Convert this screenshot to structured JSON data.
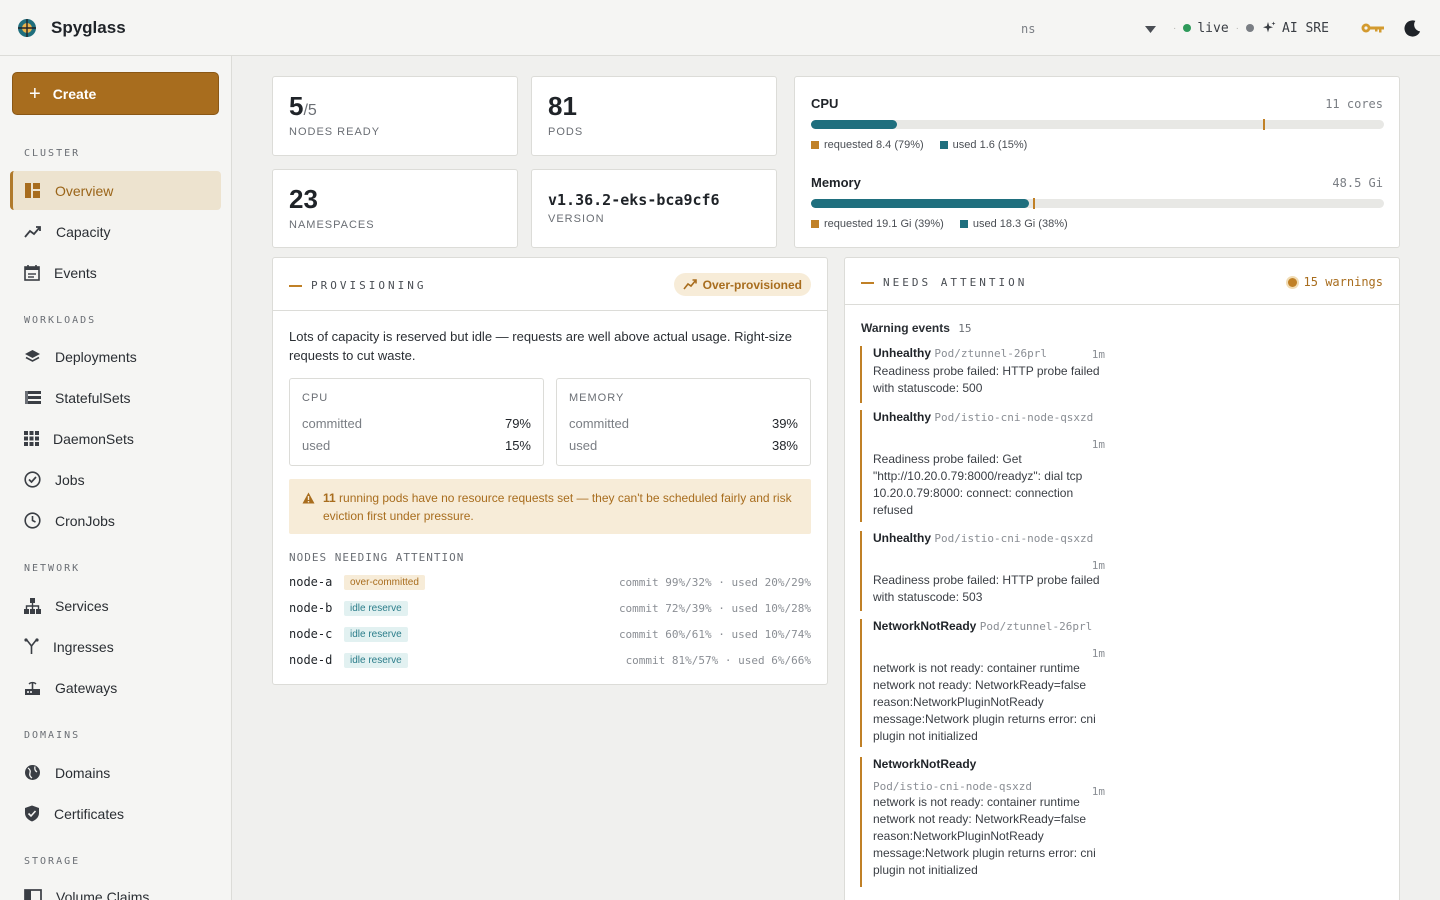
{
  "app": {
    "title": "Spyglass"
  },
  "topbar": {
    "ns_placeholder": "ns",
    "live_label": "live",
    "ai_label": "AI SRE"
  },
  "sidebar": {
    "create_label": "Create",
    "sections": {
      "cluster": "CLUSTER",
      "workloads": "WORKLOADS",
      "network": "NETWORK",
      "domains": "DOMAINS",
      "storage": "STORAGE"
    },
    "items": {
      "overview": "Overview",
      "capacity": "Capacity",
      "events": "Events",
      "deployments": "Deployments",
      "statefulsets": "StatefulSets",
      "daemonsets": "DaemonSets",
      "jobs": "Jobs",
      "cronjobs": "CronJobs",
      "services": "Services",
      "ingresses": "Ingresses",
      "gateways": "Gateways",
      "domains": "Domains",
      "certificates": "Certificates",
      "volumeclaims": "Volume Claims"
    }
  },
  "stats": {
    "nodes": {
      "value": "5",
      "total": "/5",
      "label": "NODES READY"
    },
    "pods": {
      "value": "81",
      "label": "PODS"
    },
    "namespaces": {
      "value": "23",
      "label": "NAMESPACES"
    },
    "version": {
      "value": "v1.36.2-eks-bca9cf6",
      "label": "VERSION"
    }
  },
  "resources": {
    "cpu": {
      "title": "CPU",
      "total": "11 cores",
      "used_fraction": 0.15,
      "requested_fraction": 0.79,
      "requested_label": "requested 8.4 (79%)",
      "used_label": "used 1.6 (15%)"
    },
    "memory": {
      "title": "Memory",
      "total": "48.5 Gi",
      "used_fraction": 0.38,
      "requested_fraction": 0.39,
      "requested_label": "requested 19.1 Gi (39%)",
      "used_label": "used 18.3 Gi (38%)"
    },
    "colors": {
      "used": "#1f6f7e",
      "requested": "#c08026"
    }
  },
  "provisioning": {
    "title": "PROVISIONING",
    "badge": "Over-provisioned",
    "description": "Lots of capacity is reserved but idle — requests are well above actual usage. Right-size requests to cut waste.",
    "cpu": {
      "title": "CPU",
      "committed_label": "committed",
      "committed": "79%",
      "used_label": "used",
      "used": "15%"
    },
    "memory": {
      "title": "MEMORY",
      "committed_label": "committed",
      "committed": "39%",
      "used_label": "used",
      "used": "38%"
    },
    "warning": {
      "count": "11",
      "text": " running pods have no resource requests set — they can't be scheduled fairly and risk eviction first under pressure."
    },
    "nodes_title": "NODES NEEDING ATTENTION",
    "nodes": [
      {
        "name": "node-a",
        "tag": "over-committed",
        "stats": "commit 99%/32% · used 20%/29%"
      },
      {
        "name": "node-b",
        "tag": "idle reserve",
        "stats": "commit 72%/39% · used 10%/28%"
      },
      {
        "name": "node-c",
        "tag": "idle reserve",
        "stats": "commit 60%/61% · used 10%/74%"
      },
      {
        "name": "node-d",
        "tag": "idle reserve",
        "stats": "commit 81%/57% · used 6%/66%"
      }
    ]
  },
  "attention": {
    "title": "NEEDS ATTENTION",
    "warnings_badge": "15 warnings",
    "events_label": "Warning events",
    "events_count": "15",
    "events": [
      {
        "reason": "Unhealthy",
        "object": "Pod/ztunnel-26prl",
        "age": "1m",
        "message": "Readiness probe failed: HTTP probe failed with statuscode: 500"
      },
      {
        "reason": "Unhealthy",
        "object": "Pod/istio-cni-node-qsxzd",
        "age": "1m",
        "message": "Readiness probe failed: Get \"http://10.20.0.79:8000/readyz\": dial tcp 10.20.0.79:8000: connect: connection refused"
      },
      {
        "reason": "Unhealthy",
        "object": "Pod/istio-cni-node-qsxzd",
        "age": "1m",
        "message": "Readiness probe failed: HTTP probe failed with statuscode: 503"
      },
      {
        "reason": "NetworkNotReady",
        "object": "Pod/ztunnel-26prl",
        "age": "1m",
        "message": "network is not ready: container runtime network not ready: NetworkReady=false reason:NetworkPluginNotReady message:Network plugin returns error: cni plugin not initialized"
      },
      {
        "reason": "NetworkNotReady",
        "object": "Pod/istio-cni-node-qsxzd",
        "age": "1m",
        "message": "network is not ready: container runtime network not ready: NetworkReady=false reason:NetworkPluginNotReady message:Network plugin returns error: cni plugin not initialized"
      }
    ]
  }
}
